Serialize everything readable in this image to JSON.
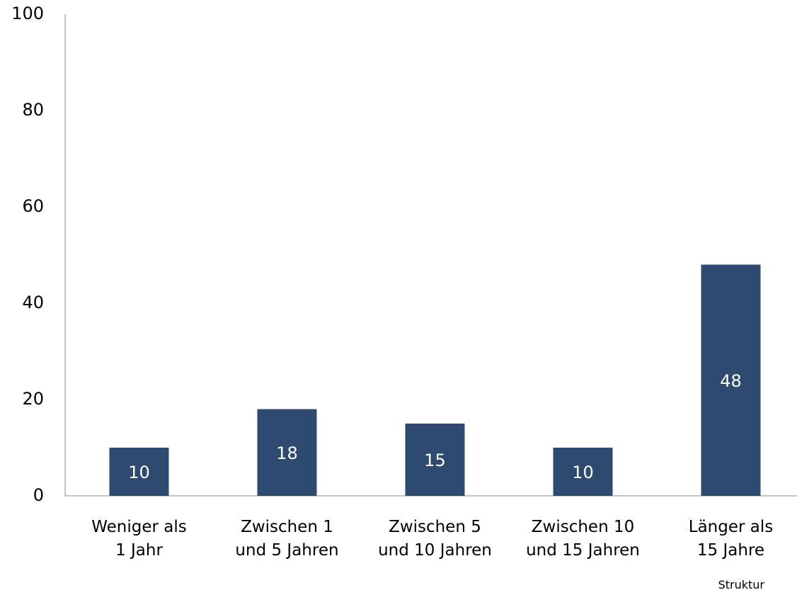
{
  "chart_data": {
    "type": "bar",
    "categories": [
      "Weniger als\n1 Jahr",
      "Zwischen 1\nund 5 Jahren",
      "Zwischen 5\nund 10 Jahren",
      "Zwischen 10\nund 15 Jahren",
      "Länger als\n15 Jahre"
    ],
    "values": [
      10,
      18,
      15,
      10,
      48
    ],
    "color": "#2e4a70",
    "ylim": [
      0,
      100
    ],
    "yticks": [
      0,
      20,
      40,
      60,
      80,
      100
    ],
    "grid": false,
    "note": "Struktur"
  }
}
